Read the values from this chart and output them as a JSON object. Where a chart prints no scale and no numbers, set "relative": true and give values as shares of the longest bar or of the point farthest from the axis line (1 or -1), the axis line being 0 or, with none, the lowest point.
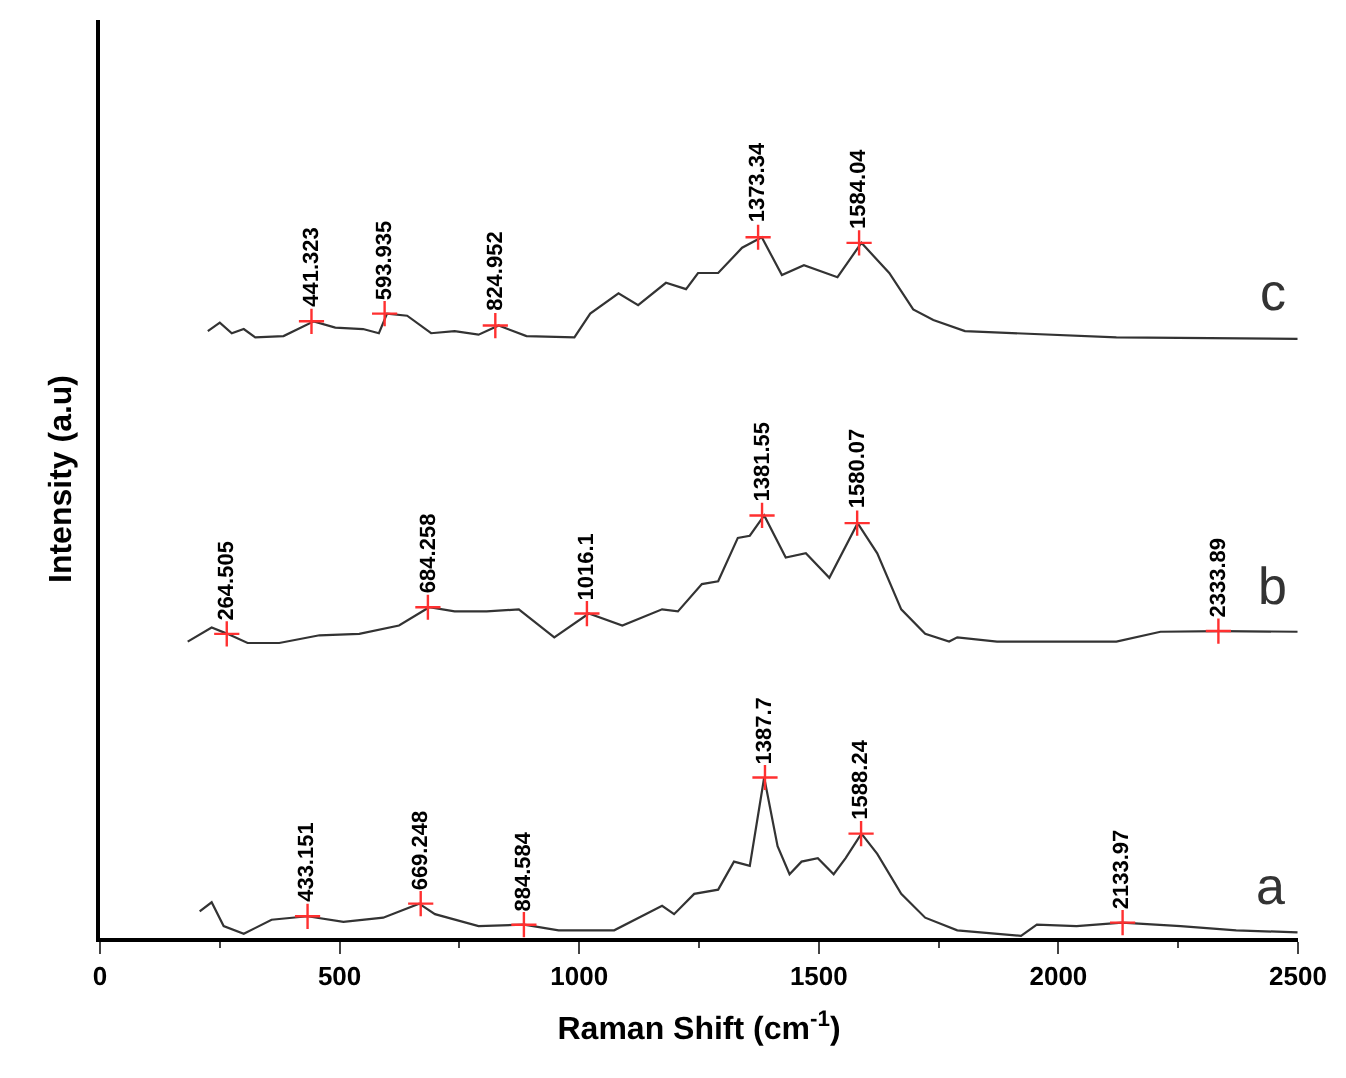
{
  "chart_data": {
    "type": "line",
    "relative": true,
    "xlabel": "Raman Shift (cm$^{-1}$)",
    "ylabel": "Intensity (a.u)",
    "xlim": [
      0,
      2500
    ],
    "xticks": [
      0,
      500,
      1000,
      1500,
      2000,
      2500
    ],
    "legend": false,
    "marker": "none",
    "line_style": "solid",
    "series": [
      {
        "name": "a",
        "color": "#333333",
        "x": [
          208,
          233,
          258,
          300,
          358,
          433,
          508,
          591,
          666,
          699,
          790,
          885,
          957,
          1073,
          1173,
          1198,
          1240,
          1290,
          1323,
          1356,
          1386,
          1414,
          1439,
          1464,
          1498,
          1531,
          1556,
          1589,
          1622,
          1672,
          1722,
          1789,
          1922,
          1955,
          2038,
          2133,
          2255,
          2371,
          2499
        ],
        "values": [
          0.038,
          0.051,
          0.017,
          0.006,
          0.026,
          0.031,
          0.023,
          0.029,
          0.049,
          0.034,
          0.017,
          0.019,
          0.011,
          0.011,
          0.046,
          0.034,
          0.063,
          0.069,
          0.109,
          0.103,
          0.229,
          0.131,
          0.091,
          0.109,
          0.114,
          0.091,
          0.114,
          0.149,
          0.12,
          0.063,
          0.029,
          0.011,
          0.003,
          0.019,
          0.017,
          0.022,
          0.017,
          0.011,
          0.008
        ]
      },
      {
        "name": "b",
        "color": "#333333",
        "x": [
          183,
          233,
          266,
          308,
          374,
          458,
          541,
          624,
          687,
          740,
          807,
          874,
          948,
          1020,
          1090,
          1173,
          1206,
          1256,
          1290,
          1331,
          1356,
          1386,
          1431,
          1473,
          1522,
          1581,
          1622,
          1672,
          1722,
          1772,
          1789,
          1872,
          2121,
          2213,
          2338,
          2499
        ],
        "values": [
          0.423,
          0.443,
          0.434,
          0.421,
          0.421,
          0.432,
          0.434,
          0.446,
          0.472,
          0.466,
          0.466,
          0.469,
          0.429,
          0.463,
          0.446,
          0.469,
          0.466,
          0.505,
          0.509,
          0.571,
          0.574,
          0.603,
          0.543,
          0.549,
          0.514,
          0.592,
          0.549,
          0.469,
          0.434,
          0.423,
          0.429,
          0.423,
          0.423,
          0.437,
          0.438,
          0.437
        ]
      },
      {
        "name": "c",
        "color": "#333333",
        "x": [
          225,
          250,
          275,
          300,
          324,
          383,
          446,
          491,
          549,
          582,
          599,
          641,
          691,
          740,
          790,
          832,
          890,
          990,
          1023,
          1082,
          1123,
          1181,
          1223,
          1248,
          1290,
          1340,
          1381,
          1423,
          1469,
          1539,
          1589,
          1647,
          1697,
          1739,
          1805,
          2121,
          2499
        ],
        "values": [
          0.866,
          0.878,
          0.863,
          0.869,
          0.857,
          0.859,
          0.88,
          0.871,
          0.869,
          0.863,
          0.891,
          0.888,
          0.863,
          0.866,
          0.861,
          0.874,
          0.859,
          0.857,
          0.891,
          0.92,
          0.903,
          0.935,
          0.926,
          0.949,
          0.949,
          0.985,
          1.0,
          0.946,
          0.96,
          0.943,
          0.992,
          0.949,
          0.897,
          0.882,
          0.866,
          0.857,
          0.855
        ]
      }
    ],
    "annotations": [
      {
        "text": "433.151",
        "x": 433.151,
        "y": 0.031
      },
      {
        "text": "669.248",
        "x": 669.248,
        "y": 0.049
      },
      {
        "text": "884.584",
        "x": 884.584,
        "y": 0.019
      },
      {
        "text": "1387.7",
        "x": 1387.7,
        "y": 0.229
      },
      {
        "text": "1588.24",
        "x": 1588.24,
        "y": 0.149
      },
      {
        "text": "2133.97",
        "x": 2133.97,
        "y": 0.022
      },
      {
        "text": "264.505",
        "x": 264.505,
        "y": 0.434
      },
      {
        "text": "684.258",
        "x": 684.258,
        "y": 0.472
      },
      {
        "text": "1016.1",
        "x": 1016.1,
        "y": 0.463
      },
      {
        "text": "1381.55",
        "x": 1381.55,
        "y": 0.603
      },
      {
        "text": "1580.07",
        "x": 1580.07,
        "y": 0.592
      },
      {
        "text": "2333.89",
        "x": 2333.89,
        "y": 0.438
      },
      {
        "text": "441.323",
        "x": 441.323,
        "y": 0.88
      },
      {
        "text": "593.935",
        "x": 593.935,
        "y": 0.891
      },
      {
        "text": "824.952",
        "x": 824.952,
        "y": 0.874
      },
      {
        "text": "1373.34",
        "x": 1373.34,
        "y": 1.0
      },
      {
        "text": "1584.04",
        "x": 1584.04,
        "y": 0.992
      }
    ]
  }
}
